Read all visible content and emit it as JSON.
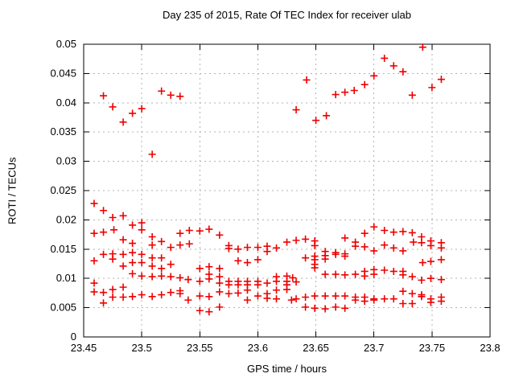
{
  "chart_data": {
    "type": "scatter",
    "title": "Day 235 of 2015, Rate Of TEC Index for receiver ulab",
    "xlabel": "GPS time / hours",
    "ylabel": "ROTI / TECUs",
    "xlim": [
      23.45,
      23.8
    ],
    "ylim": [
      0,
      0.05
    ],
    "grid": true,
    "legend": "none",
    "marker": {
      "shape": "plus",
      "color": "#ee0000",
      "size": 9
    },
    "colors": {
      "grid": "#b3b3b3",
      "axis": "#000000",
      "background": "#ffffff"
    },
    "x_ticks": [
      {
        "value": 23.45,
        "label": "23.45"
      },
      {
        "value": 23.5,
        "label": "23.5"
      },
      {
        "value": 23.55,
        "label": "23.55"
      },
      {
        "value": 23.6,
        "label": "23.6"
      },
      {
        "value": 23.65,
        "label": "23.65"
      },
      {
        "value": 23.7,
        "label": "23.7"
      },
      {
        "value": 23.75,
        "label": "23.75"
      },
      {
        "value": 23.8,
        "label": "23.8"
      }
    ],
    "y_ticks": [
      {
        "value": 0,
        "label": "0"
      },
      {
        "value": 0.005,
        "label": "0.005"
      },
      {
        "value": 0.01,
        "label": "0.01"
      },
      {
        "value": 0.015,
        "label": "0.015"
      },
      {
        "value": 0.02,
        "label": "0.02"
      },
      {
        "value": 0.025,
        "label": "0.025"
      },
      {
        "value": 0.03,
        "label": "0.03"
      },
      {
        "value": 0.035,
        "label": "0.035"
      },
      {
        "value": 0.04,
        "label": "0.04"
      },
      {
        "value": 0.045,
        "label": "0.045"
      },
      {
        "value": 0.05,
        "label": "0.05"
      }
    ],
    "points": [
      [
        23.467,
        0.0412
      ],
      [
        23.475,
        0.0393
      ],
      [
        23.484,
        0.0367
      ],
      [
        23.492,
        0.0382
      ],
      [
        23.5,
        0.039
      ],
      [
        23.509,
        0.0312
      ],
      [
        23.517,
        0.042
      ],
      [
        23.525,
        0.0413
      ],
      [
        23.533,
        0.0411
      ],
      [
        23.633,
        0.0388
      ],
      [
        23.642,
        0.0439
      ],
      [
        23.65,
        0.037
      ],
      [
        23.659,
        0.0378
      ],
      [
        23.667,
        0.0414
      ],
      [
        23.675,
        0.0418
      ],
      [
        23.683,
        0.0421
      ],
      [
        23.692,
        0.0431
      ],
      [
        23.7,
        0.0446
      ],
      [
        23.709,
        0.0476
      ],
      [
        23.717,
        0.0463
      ],
      [
        23.725,
        0.0453
      ],
      [
        23.733,
        0.0413
      ],
      [
        23.742,
        0.0495
      ],
      [
        23.75,
        0.0426
      ],
      [
        23.758,
        0.044
      ],
      [
        23.459,
        0.0228
      ],
      [
        23.467,
        0.0216
      ],
      [
        23.475,
        0.0204
      ],
      [
        23.484,
        0.0207
      ],
      [
        23.492,
        0.0191
      ],
      [
        23.5,
        0.0195
      ],
      [
        23.5,
        0.0183
      ],
      [
        23.459,
        0.0177
      ],
      [
        23.467,
        0.0179
      ],
      [
        23.476,
        0.0183
      ],
      [
        23.484,
        0.0166
      ],
      [
        23.492,
        0.016
      ],
      [
        23.509,
        0.0171
      ],
      [
        23.509,
        0.0157
      ],
      [
        23.517,
        0.0163
      ],
      [
        23.525,
        0.0153
      ],
      [
        23.533,
        0.0177
      ],
      [
        23.533,
        0.0157
      ],
      [
        23.459,
        0.013
      ],
      [
        23.467,
        0.0141
      ],
      [
        23.475,
        0.0142
      ],
      [
        23.475,
        0.0133
      ],
      [
        23.484,
        0.0141
      ],
      [
        23.484,
        0.0121
      ],
      [
        23.492,
        0.0144
      ],
      [
        23.492,
        0.0127
      ],
      [
        23.5,
        0.0141
      ],
      [
        23.5,
        0.0127
      ],
      [
        23.509,
        0.0135
      ],
      [
        23.509,
        0.0121
      ],
      [
        23.517,
        0.0135
      ],
      [
        23.517,
        0.0117
      ],
      [
        23.525,
        0.0124
      ],
      [
        23.492,
        0.0108
      ],
      [
        23.5,
        0.0104
      ],
      [
        23.509,
        0.0103
      ],
      [
        23.517,
        0.0104
      ],
      [
        23.525,
        0.0103
      ],
      [
        23.533,
        0.0101
      ],
      [
        23.459,
        0.0092
      ],
      [
        23.459,
        0.0077
      ],
      [
        23.467,
        0.0076
      ],
      [
        23.467,
        0.0058
      ],
      [
        23.475,
        0.0081
      ],
      [
        23.475,
        0.0068
      ],
      [
        23.484,
        0.0085
      ],
      [
        23.484,
        0.0068
      ],
      [
        23.492,
        0.0069
      ],
      [
        23.5,
        0.0072
      ],
      [
        23.509,
        0.0069
      ],
      [
        23.517,
        0.0072
      ],
      [
        23.525,
        0.0076
      ],
      [
        23.533,
        0.0079
      ],
      [
        23.533,
        0.0074
      ],
      [
        23.541,
        0.0182
      ],
      [
        23.55,
        0.0181
      ],
      [
        23.558,
        0.0184
      ],
      [
        23.567,
        0.0174
      ],
      [
        23.541,
        0.0159
      ],
      [
        23.575,
        0.0156
      ],
      [
        23.575,
        0.0151
      ],
      [
        23.583,
        0.015
      ],
      [
        23.591,
        0.0153
      ],
      [
        23.6,
        0.0153
      ],
      [
        23.608,
        0.0155
      ],
      [
        23.608,
        0.0146
      ],
      [
        23.616,
        0.0152
      ],
      [
        23.625,
        0.0162
      ],
      [
        23.583,
        0.013
      ],
      [
        23.591,
        0.0127
      ],
      [
        23.6,
        0.0132
      ],
      [
        23.55,
        0.0117
      ],
      [
        23.558,
        0.012
      ],
      [
        23.567,
        0.0117
      ],
      [
        23.558,
        0.0107
      ],
      [
        23.567,
        0.0103
      ],
      [
        23.54,
        0.0098
      ],
      [
        23.55,
        0.0095
      ],
      [
        23.558,
        0.0099
      ],
      [
        23.567,
        0.0092
      ],
      [
        23.575,
        0.0095
      ],
      [
        23.575,
        0.0089
      ],
      [
        23.583,
        0.0095
      ],
      [
        23.583,
        0.0089
      ],
      [
        23.591,
        0.0095
      ],
      [
        23.591,
        0.0089
      ],
      [
        23.6,
        0.0095
      ],
      [
        23.6,
        0.0089
      ],
      [
        23.608,
        0.0092
      ],
      [
        23.616,
        0.0103
      ],
      [
        23.616,
        0.0095
      ],
      [
        23.625,
        0.0104
      ],
      [
        23.625,
        0.0095
      ],
      [
        23.625,
        0.0089
      ],
      [
        23.55,
        0.007
      ],
      [
        23.558,
        0.0069
      ],
      [
        23.567,
        0.0077
      ],
      [
        23.575,
        0.0074
      ],
      [
        23.583,
        0.0075
      ],
      [
        23.591,
        0.008
      ],
      [
        23.591,
        0.0063
      ],
      [
        23.6,
        0.007
      ],
      [
        23.608,
        0.0074
      ],
      [
        23.608,
        0.0066
      ],
      [
        23.616,
        0.008
      ],
      [
        23.616,
        0.0065
      ],
      [
        23.625,
        0.0081
      ],
      [
        23.54,
        0.0063
      ],
      [
        23.55,
        0.0045
      ],
      [
        23.558,
        0.0043
      ],
      [
        23.567,
        0.0051
      ],
      [
        23.633,
        0.0165
      ],
      [
        23.641,
        0.0167
      ],
      [
        23.649,
        0.0164
      ],
      [
        23.649,
        0.0156
      ],
      [
        23.675,
        0.0169
      ],
      [
        23.684,
        0.0162
      ],
      [
        23.684,
        0.0155
      ],
      [
        23.692,
        0.0177
      ],
      [
        23.692,
        0.0154
      ],
      [
        23.7,
        0.0188
      ],
      [
        23.7,
        0.0147
      ],
      [
        23.709,
        0.0182
      ],
      [
        23.709,
        0.0157
      ],
      [
        23.717,
        0.0179
      ],
      [
        23.717,
        0.0152
      ],
      [
        23.641,
        0.0135
      ],
      [
        23.649,
        0.0138
      ],
      [
        23.649,
        0.0132
      ],
      [
        23.658,
        0.0146
      ],
      [
        23.658,
        0.0139
      ],
      [
        23.658,
        0.0133
      ],
      [
        23.667,
        0.0144
      ],
      [
        23.667,
        0.0141
      ],
      [
        23.675,
        0.0142
      ],
      [
        23.675,
        0.0138
      ],
      [
        23.649,
        0.0124
      ],
      [
        23.649,
        0.0118
      ],
      [
        23.658,
        0.0107
      ],
      [
        23.667,
        0.0107
      ],
      [
        23.675,
        0.0106
      ],
      [
        23.684,
        0.0107
      ],
      [
        23.692,
        0.0112
      ],
      [
        23.692,
        0.0104
      ],
      [
        23.7,
        0.0115
      ],
      [
        23.7,
        0.0107
      ],
      [
        23.709,
        0.0114
      ],
      [
        23.717,
        0.0112
      ],
      [
        23.63,
        0.0101
      ],
      [
        23.633,
        0.0094
      ],
      [
        23.633,
        0.0065
      ],
      [
        23.641,
        0.0068
      ],
      [
        23.649,
        0.007
      ],
      [
        23.658,
        0.007
      ],
      [
        23.667,
        0.007
      ],
      [
        23.675,
        0.007
      ],
      [
        23.684,
        0.0068
      ],
      [
        23.684,
        0.0063
      ],
      [
        23.692,
        0.0068
      ],
      [
        23.692,
        0.0061
      ],
      [
        23.7,
        0.0065
      ],
      [
        23.7,
        0.0063
      ],
      [
        23.709,
        0.0065
      ],
      [
        23.717,
        0.0065
      ],
      [
        23.629,
        0.0063
      ],
      [
        23.641,
        0.0051
      ],
      [
        23.649,
        0.0049
      ],
      [
        23.658,
        0.0048
      ],
      [
        23.667,
        0.0051
      ],
      [
        23.675,
        0.0049
      ],
      [
        23.725,
        0.018
      ],
      [
        23.733,
        0.0178
      ],
      [
        23.734,
        0.0162
      ],
      [
        23.741,
        0.0171
      ],
      [
        23.741,
        0.0161
      ],
      [
        23.749,
        0.0164
      ],
      [
        23.749,
        0.0156
      ],
      [
        23.758,
        0.0161
      ],
      [
        23.758,
        0.0152
      ],
      [
        23.725,
        0.0147
      ],
      [
        23.742,
        0.0127
      ],
      [
        23.749,
        0.0129
      ],
      [
        23.758,
        0.0132
      ],
      [
        23.725,
        0.0112
      ],
      [
        23.725,
        0.0106
      ],
      [
        23.733,
        0.0103
      ],
      [
        23.741,
        0.0097
      ],
      [
        23.749,
        0.01
      ],
      [
        23.758,
        0.0098
      ],
      [
        23.725,
        0.0078
      ],
      [
        23.733,
        0.0074
      ],
      [
        23.741,
        0.0072
      ],
      [
        23.741,
        0.0069
      ],
      [
        23.749,
        0.0065
      ],
      [
        23.749,
        0.0059
      ],
      [
        23.758,
        0.0068
      ],
      [
        23.758,
        0.0061
      ],
      [
        23.725,
        0.0057
      ],
      [
        23.733,
        0.0057
      ]
    ]
  }
}
